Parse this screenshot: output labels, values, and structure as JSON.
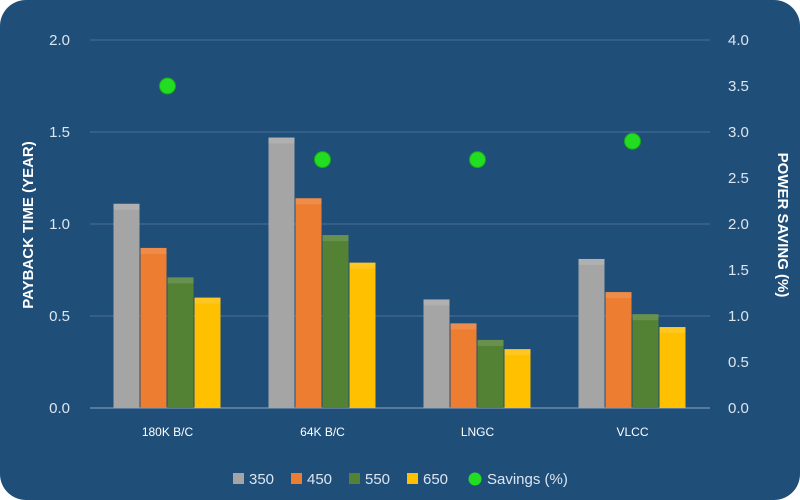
{
  "chart_data": {
    "type": "bar",
    "categories": [
      "180K B/C",
      "64K B/C",
      "LNGC",
      "VLCC"
    ],
    "series": [
      {
        "name": "350",
        "values": [
          1.11,
          1.47,
          0.59,
          0.81
        ],
        "color": "#a5a5a5"
      },
      {
        "name": "450",
        "values": [
          0.87,
          1.14,
          0.46,
          0.63
        ],
        "color": "#ed7d31"
      },
      {
        "name": "550",
        "values": [
          0.71,
          0.94,
          0.37,
          0.51
        ],
        "color": "#548235"
      },
      {
        "name": "650",
        "values": [
          0.6,
          0.79,
          0.32,
          0.44
        ],
        "color": "#ffc000"
      }
    ],
    "secondary_series": {
      "name": "Savings (%)",
      "type": "scatter",
      "values": [
        3.5,
        2.7,
        2.7,
        2.9
      ],
      "color": "#22dd22"
    },
    "ylabel": "PAYBACK TIME (YEAR)",
    "y2label": "POWER SAVING (%)",
    "ylim": [
      0,
      2.0
    ],
    "y2lim": [
      0,
      4.0
    ],
    "yticks": [
      "0.0",
      "0.5",
      "1.0",
      "1.5",
      "2.0"
    ],
    "y2ticks": [
      "0.0",
      "0.5",
      "1.0",
      "1.5",
      "2.0",
      "2.5",
      "3.0",
      "3.5",
      "4.0"
    ],
    "grid": true,
    "legend_position": "bottom",
    "background_color": "#1f4e79"
  }
}
